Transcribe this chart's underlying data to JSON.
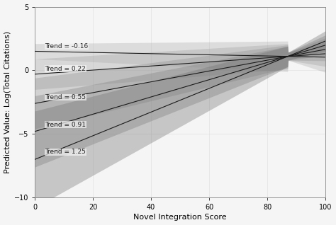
{
  "title": "",
  "xlabel": "Novel Integration Score",
  "ylabel": "Predicted Value: Log(Total Citations)",
  "xlim": [
    0,
    100
  ],
  "ylim": [
    -10,
    5
  ],
  "xticks": [
    0,
    20,
    40,
    60,
    80,
    100
  ],
  "yticks": [
    -10,
    -5,
    0,
    5
  ],
  "convergence_x": 87,
  "convergence_y": 1.1,
  "lines": [
    {
      "label": "Trend = -0.16",
      "y0": 1.5,
      "y1": 1.3,
      "ci_lo_0": 0.5,
      "ci_hi_0": 0.5,
      "ci_lo_1": 1.0,
      "ci_hi_1": 1.0
    },
    {
      "label": "Trend = 0.22",
      "y0": -0.2,
      "y1": 1.5,
      "ci_lo_0": 0.8,
      "ci_hi_0": 0.8,
      "ci_lo_1": 0.8,
      "ci_hi_1": 0.8
    },
    {
      "label": "Trend = 0.55",
      "y0": -2.5,
      "y1": 1.8,
      "ci_lo_0": 1.2,
      "ci_hi_0": 1.2,
      "ci_lo_1": 0.7,
      "ci_hi_1": 0.7
    },
    {
      "label": "Trend = 0.91",
      "y0": -4.5,
      "y1": 2.0,
      "ci_lo_0": 1.8,
      "ci_hi_0": 1.8,
      "ci_lo_1": 0.6,
      "ci_hi_1": 0.6
    },
    {
      "label": "Trend = 1.25",
      "y0": -6.5,
      "y1": 2.2,
      "ci_lo_0": 2.5,
      "ci_hi_0": 2.5,
      "ci_lo_1": 0.6,
      "ci_hi_1": 0.6
    }
  ],
  "band_colors": [
    "#b0b0b0",
    "#a0a0a0",
    "#909090",
    "#808080",
    "#707070"
  ],
  "band_alphas": [
    0.35,
    0.35,
    0.35,
    0.35,
    0.35
  ],
  "background_color": "#f5f5f5",
  "grid_color": "#dddddd",
  "line_color": "#1a1a1a",
  "label_fontsize": 6.5,
  "tick_fontsize": 7,
  "axis_label_fontsize": 8
}
